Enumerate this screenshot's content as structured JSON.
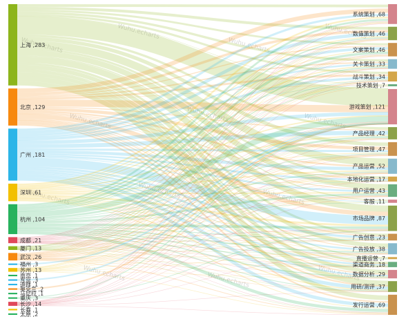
{
  "chart_data": {
    "type": "sankey",
    "watermark": "Wuhu.echarts",
    "sources": [
      {
        "name": "上海",
        "value": 283,
        "color": "#8db51c"
      },
      {
        "name": "北京",
        "value": 129,
        "color": "#f7890f"
      },
      {
        "name": "广州",
        "value": 181,
        "color": "#2cb5e8"
      },
      {
        "name": "深圳",
        "value": 61,
        "color": "#f2c000"
      },
      {
        "name": "杭州",
        "value": 104,
        "color": "#27b25d"
      },
      {
        "name": "成都",
        "value": 21,
        "color": "#e0485a"
      },
      {
        "name": "厦门",
        "value": 13,
        "color": "#8db51c"
      },
      {
        "name": "武汉",
        "value": 26,
        "color": "#f7890f"
      },
      {
        "name": "福州",
        "value": 3,
        "color": "#2cb5e8"
      },
      {
        "name": "苏州",
        "value": 13,
        "color": "#f2c000"
      },
      {
        "name": "南京",
        "value": 1,
        "color": "#27b25d"
      },
      {
        "name": "东京",
        "value": 3,
        "color": "#2cb5e8"
      },
      {
        "name": "迪拜",
        "value": 1,
        "color": "#2cb5e8"
      },
      {
        "name": "奥克兰",
        "value": 2,
        "color": "#f7890f"
      },
      {
        "name": "马尼拉",
        "value": 1,
        "color": "#27b25d"
      },
      {
        "name": "重庆",
        "value": 3,
        "color": "#27b25d"
      },
      {
        "name": "长沙",
        "value": 14,
        "color": "#e0485a"
      },
      {
        "name": "长春",
        "value": 1,
        "color": "#f2c000"
      },
      {
        "name": "太原",
        "value": 2,
        "color": "#27b25d"
      }
    ],
    "targets": [
      {
        "name": "系统策划",
        "value": 68,
        "color": "#d4848c"
      },
      {
        "name": "数值策划",
        "value": 46,
        "color": "#8ca24a"
      },
      {
        "name": "文案策划",
        "value": 46,
        "color": "#c9924e"
      },
      {
        "name": "关卡策划",
        "value": 33,
        "color": "#87b9cc"
      },
      {
        "name": "战斗策划",
        "value": 34,
        "color": "#d4a64a"
      },
      {
        "name": "技术策划",
        "value": 7,
        "color": "#6aad80"
      },
      {
        "name": "游戏策划",
        "value": 121,
        "color": "#d4848c"
      },
      {
        "name": "产品经理",
        "value": 42,
        "color": "#8ca24a"
      },
      {
        "name": "项目管理",
        "value": 47,
        "color": "#c9924e"
      },
      {
        "name": "产品运营",
        "value": 52,
        "color": "#87b9cc"
      },
      {
        "name": "本地化运营",
        "value": 17,
        "color": "#d4a64a"
      },
      {
        "name": "用户运营",
        "value": 43,
        "color": "#6aad80"
      },
      {
        "name": "客服",
        "value": 11,
        "color": "#d4848c"
      },
      {
        "name": "市场品牌",
        "value": 87,
        "color": "#8ca24a"
      },
      {
        "name": "广告创意",
        "value": 23,
        "color": "#c9924e"
      },
      {
        "name": "广告投放",
        "value": 38,
        "color": "#87b9cc"
      },
      {
        "name": "直播运营",
        "value": 7,
        "color": "#d4a64a"
      },
      {
        "name": "渠道商务",
        "value": 18,
        "color": "#6aad80"
      },
      {
        "name": "数据分析",
        "value": 29,
        "color": "#d4848c"
      },
      {
        "name": "用研/测评",
        "value": 37,
        "color": "#8ca24a"
      },
      {
        "name": "发行运营",
        "value": 69,
        "color": "#c9924e"
      }
    ]
  }
}
